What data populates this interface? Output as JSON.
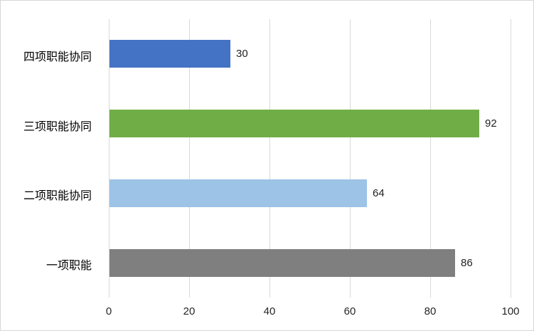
{
  "chart_data": {
    "type": "bar",
    "orientation": "horizontal",
    "title": "",
    "xlabel": "",
    "ylabel": "",
    "categories": [
      "四项职能协同",
      "三项职能协同",
      "二项职能协同",
      "一项职能"
    ],
    "values": [
      30,
      92,
      64,
      86
    ],
    "bar_colors": [
      "#4472c4",
      "#70ad47",
      "#9dc3e6",
      "#7f7f7f"
    ],
    "data_labels": [
      "30",
      "92",
      "64",
      "86"
    ],
    "x_ticks": [
      "0",
      "20",
      "40",
      "60",
      "80",
      "100"
    ],
    "x_tick_values": [
      0,
      20,
      40,
      60,
      80,
      100
    ],
    "xlim": [
      0,
      100
    ],
    "grid": "vertical-on",
    "gridline_color": "#d9d9d9",
    "legend": "none"
  }
}
